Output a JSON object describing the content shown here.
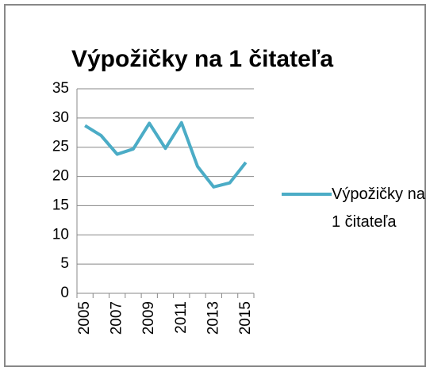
{
  "chart_data": {
    "type": "line",
    "title": "Výpožičky na 1 čitateľa",
    "categories": [
      "2005",
      null,
      "2007",
      null,
      "2009",
      null,
      "2011",
      null,
      "2013",
      null,
      "2015"
    ],
    "series": [
      {
        "name": "Výpožičky na 1 čitateľa",
        "color": "#4bacc6",
        "values": [
          28.7,
          27.0,
          23.8,
          24.7,
          29.1,
          24.8,
          29.2,
          21.7,
          18.2,
          18.9,
          22.4
        ]
      }
    ],
    "ylim": [
      0,
      35
    ],
    "yticks": [
      0,
      5,
      10,
      15,
      20,
      25,
      30,
      35
    ],
    "grid": true,
    "legend": "right"
  }
}
